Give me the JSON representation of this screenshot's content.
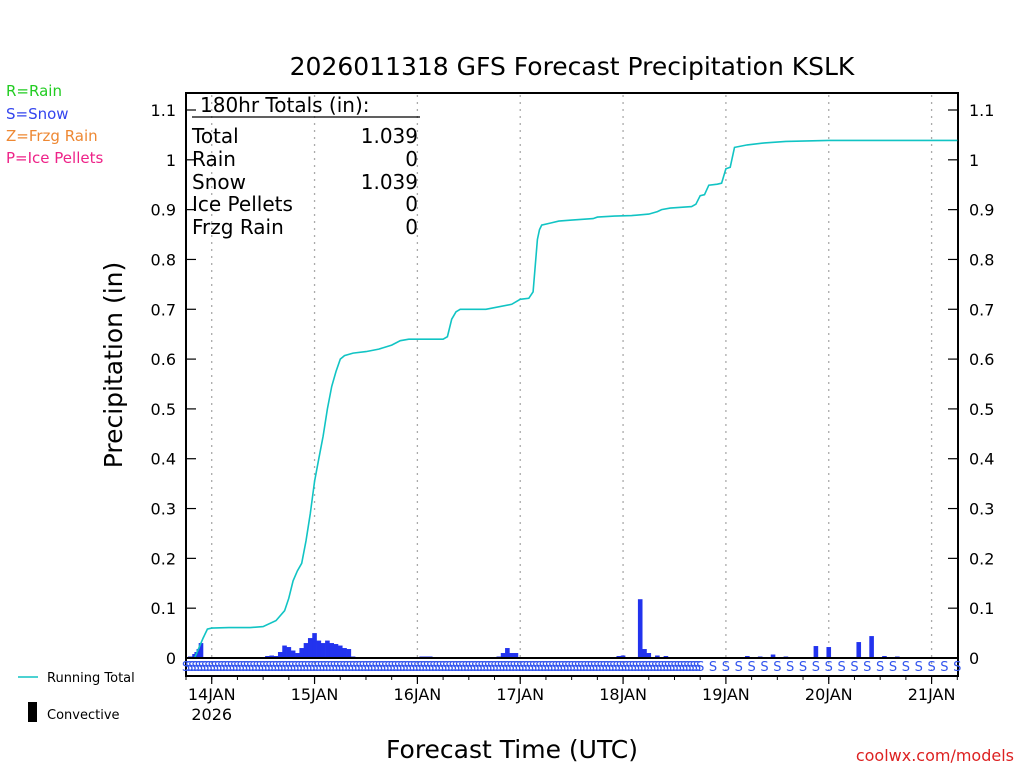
{
  "colors": {
    "rain": "#22cc22",
    "snow": "#3344ee",
    "frzg": "#ee8833",
    "ice": "#ee2288",
    "line": "#11c4c4",
    "bar": "#2233ee",
    "convective": "#000000",
    "grid": "#aaaaaa",
    "credit": "#dd2222",
    "symbol": "#3355ee"
  },
  "ptype_legend": [
    {
      "label": "R=Rain",
      "color_key": "rain"
    },
    {
      "label": "S=Snow",
      "color_key": "snow"
    },
    {
      "label": "Z=Frzg Rain",
      "color_key": "frzg"
    },
    {
      "label": "P=Ice Pellets",
      "color_key": "ice"
    }
  ],
  "totals": {
    "header": "180hr Totals (in):",
    "rows": [
      {
        "label": "Total",
        "value": "1.039"
      },
      {
        "label": "Rain",
        "value": "0"
      },
      {
        "label": "Snow",
        "value": "1.039"
      },
      {
        "label": "Ice Pellets",
        "value": "0"
      },
      {
        "label": "Frzg Rain",
        "value": "0"
      }
    ]
  },
  "series_legend": {
    "running_total": "Running Total",
    "convective": "Convective"
  },
  "credit": "coolwx.com/models",
  "chart_data": {
    "type": "bar+line",
    "title": "2026011318 GFS Forecast Precipitation KSLK",
    "xlabel": "Forecast Time (UTC)",
    "ylabel": "Precipitation (in)",
    "ylim": [
      0,
      1.1
    ],
    "y_ticks": [
      0,
      0.1,
      0.2,
      0.3,
      0.4,
      0.5,
      0.6,
      0.7,
      0.8,
      0.9,
      1,
      1.1
    ],
    "y_tick_labels": [
      "0",
      "0.1",
      "0.2",
      "0.3",
      "0.4",
      "0.5",
      "0.6",
      "0.7",
      "0.8",
      "0.9",
      "1",
      "1.1"
    ],
    "x_unit": "forecast hour",
    "xlim": [
      0,
      180
    ],
    "x_ticks": [
      {
        "hour": 6,
        "label": "14JAN",
        "sublabel": "2026"
      },
      {
        "hour": 30,
        "label": "15JAN"
      },
      {
        "hour": 54,
        "label": "16JAN"
      },
      {
        "hour": 78,
        "label": "17JAN"
      },
      {
        "hour": 102,
        "label": "18JAN"
      },
      {
        "hour": 126,
        "label": "19JAN"
      },
      {
        "hour": 150,
        "label": "20JAN"
      },
      {
        "hour": 174,
        "label": "21JAN"
      }
    ],
    "grid": "vertical dotted at day boundaries",
    "bars": {
      "name": "3-hourly / hourly precipitation",
      "points": [
        [
          1,
          0.003
        ],
        [
          2,
          0.008
        ],
        [
          2.5,
          0.012
        ],
        [
          3,
          0.018
        ],
        [
          3.5,
          0.03
        ],
        [
          18,
          0.002
        ],
        [
          19,
          0.004
        ],
        [
          20,
          0.005
        ],
        [
          21,
          0.004
        ],
        [
          22,
          0.012
        ],
        [
          23,
          0.025
        ],
        [
          24,
          0.022
        ],
        [
          25,
          0.015
        ],
        [
          26,
          0.01
        ],
        [
          27,
          0.02
        ],
        [
          28,
          0.03
        ],
        [
          29,
          0.04
        ],
        [
          30,
          0.05
        ],
        [
          31,
          0.035
        ],
        [
          32,
          0.03
        ],
        [
          33,
          0.035
        ],
        [
          34,
          0.03
        ],
        [
          35,
          0.028
        ],
        [
          36,
          0.025
        ],
        [
          37,
          0.02
        ],
        [
          38,
          0.018
        ],
        [
          39,
          0.003
        ],
        [
          54,
          0.002
        ],
        [
          55,
          0.003
        ],
        [
          56,
          0.003
        ],
        [
          57,
          0.003
        ],
        [
          58,
          0.002
        ],
        [
          73,
          0.003
        ],
        [
          74,
          0.01
        ],
        [
          75,
          0.02
        ],
        [
          76,
          0.01
        ],
        [
          77,
          0.01
        ],
        [
          101,
          0.004
        ],
        [
          102,
          0.005
        ],
        [
          103,
          0.002
        ],
        [
          106,
          0.118
        ],
        [
          107,
          0.018
        ],
        [
          108,
          0.01
        ],
        [
          110,
          0.005
        ],
        [
          112,
          0.004
        ],
        [
          121,
          0.002
        ],
        [
          131,
          0.004
        ],
        [
          134,
          0.003
        ],
        [
          137,
          0.007
        ],
        [
          140,
          0.003
        ],
        [
          147,
          0.024
        ],
        [
          150,
          0.022
        ],
        [
          157,
          0.032
        ],
        [
          160,
          0.044
        ],
        [
          163,
          0.004
        ],
        [
          166,
          0.003
        ]
      ]
    },
    "line": {
      "name": "Running Total",
      "points": [
        [
          0,
          0
        ],
        [
          2,
          0
        ],
        [
          3,
          0.02
        ],
        [
          4,
          0.04
        ],
        [
          5,
          0.058
        ],
        [
          6,
          0.06
        ],
        [
          10,
          0.061
        ],
        [
          15,
          0.061
        ],
        [
          18,
          0.063
        ],
        [
          21,
          0.075
        ],
        [
          23,
          0.095
        ],
        [
          24,
          0.12
        ],
        [
          25,
          0.155
        ],
        [
          26,
          0.175
        ],
        [
          27,
          0.19
        ],
        [
          28,
          0.235
        ],
        [
          29,
          0.29
        ],
        [
          30,
          0.355
        ],
        [
          31,
          0.4
        ],
        [
          32,
          0.445
        ],
        [
          33,
          0.5
        ],
        [
          34,
          0.545
        ],
        [
          35,
          0.575
        ],
        [
          36,
          0.6
        ],
        [
          37,
          0.607
        ],
        [
          39,
          0.612
        ],
        [
          42,
          0.615
        ],
        [
          45,
          0.62
        ],
        [
          48,
          0.628
        ],
        [
          50,
          0.637
        ],
        [
          52,
          0.64
        ],
        [
          57,
          0.64
        ],
        [
          60,
          0.64
        ],
        [
          61,
          0.645
        ],
        [
          62,
          0.68
        ],
        [
          63,
          0.695
        ],
        [
          64,
          0.7
        ],
        [
          70,
          0.7
        ],
        [
          76,
          0.71
        ],
        [
          78,
          0.72
        ],
        [
          80,
          0.722
        ],
        [
          81,
          0.735
        ],
        [
          82,
          0.84
        ],
        [
          82.5,
          0.86
        ],
        [
          83,
          0.869
        ],
        [
          85,
          0.873
        ],
        [
          87,
          0.877
        ],
        [
          90,
          0.879
        ],
        [
          95,
          0.882
        ],
        [
          96,
          0.885
        ],
        [
          100,
          0.887
        ],
        [
          104,
          0.888
        ],
        [
          108,
          0.891
        ],
        [
          110,
          0.896
        ],
        [
          111,
          0.9
        ],
        [
          113,
          0.903
        ],
        [
          118,
          0.906
        ],
        [
          119,
          0.911
        ],
        [
          120,
          0.928
        ],
        [
          121,
          0.93
        ],
        [
          122,
          0.949
        ],
        [
          124,
          0.951
        ],
        [
          125,
          0.953
        ],
        [
          126,
          0.982
        ],
        [
          127,
          0.985
        ],
        [
          128,
          1.025
        ],
        [
          131,
          1.03
        ],
        [
          135,
          1.034
        ],
        [
          140,
          1.037
        ],
        [
          145,
          1.038
        ],
        [
          150,
          1.039
        ],
        [
          155,
          1.039
        ],
        [
          160,
          1.039
        ],
        [
          170,
          1.039
        ],
        [
          175,
          1.039
        ],
        [
          180,
          1.039
        ]
      ]
    },
    "ptype_symbols": {
      "label": "S",
      "hours": [
        0,
        0.75,
        1.5,
        2.25,
        3,
        3.75,
        4.5,
        5.25,
        6,
        6.75,
        7.5,
        8.25,
        9,
        9.75,
        10.5,
        11.25,
        12,
        12.75,
        13.5,
        14.25,
        15,
        15.75,
        16.5,
        17.25,
        18,
        18.75,
        19.5,
        20.25,
        21,
        21.75,
        22.5,
        23.25,
        24,
        24.75,
        25.5,
        26.25,
        27,
        27.75,
        28.5,
        29.25,
        30,
        30.75,
        31.5,
        32.25,
        33,
        33.75,
        34.5,
        35.25,
        36,
        36.75,
        37.5,
        38.25,
        39,
        39.75,
        40.5,
        41.25,
        42,
        42.75,
        43.5,
        44.25,
        45,
        45.75,
        46.5,
        47.25,
        48,
        48.75,
        49.5,
        50.25,
        51,
        51.75,
        52.5,
        53.25,
        54,
        54.75,
        55.5,
        56.25,
        57,
        57.75,
        58.5,
        59.25,
        60,
        60.75,
        61.5,
        62.25,
        63,
        63.75,
        64.5,
        65.25,
        66,
        66.75,
        67.5,
        68.25,
        69,
        69.75,
        70.5,
        71.25,
        72,
        72.75,
        73.5,
        74.25,
        75,
        75.75,
        76.5,
        77.25,
        78,
        78.75,
        79.5,
        80.25,
        81,
        81.75,
        82.5,
        83.25,
        84,
        84.75,
        85.5,
        86.25,
        87,
        87.75,
        88.5,
        89.25,
        90,
        90.75,
        91.5,
        92.25,
        93,
        93.75,
        94.5,
        95.25,
        96,
        96.75,
        97.5,
        98.25,
        99,
        99.75,
        100.5,
        101.25,
        102,
        102.75,
        103.5,
        104.25,
        105,
        105.75,
        106.5,
        107.25,
        108,
        108.75,
        109.5,
        110.25,
        111,
        111.75,
        112.5,
        113.25,
        114,
        114.75,
        115.5,
        116.25,
        117,
        117.75,
        118.5,
        119.25,
        120,
        123,
        126,
        129,
        132,
        135,
        138,
        141,
        144,
        147,
        150,
        153,
        156,
        159,
        162,
        165,
        168,
        171,
        174,
        177,
        180
      ]
    }
  }
}
